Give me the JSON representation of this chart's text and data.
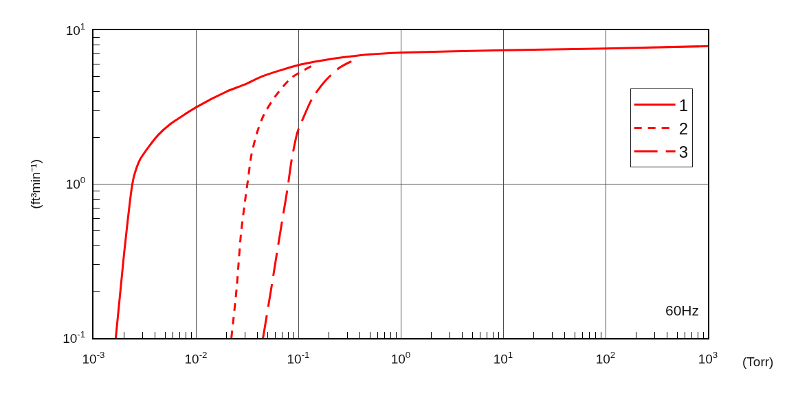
{
  "chart_data": {
    "type": "line",
    "xlabel": "(Torr)",
    "ylabel": "(ft³min⁻¹)",
    "log": "xy",
    "xlim": [
      0.001,
      1000
    ],
    "ylim": [
      0.1,
      10
    ],
    "xticks": [
      {
        "value": 0.001,
        "label": "10$^{-3}$"
      },
      {
        "value": 0.002,
        "label": null
      },
      {
        "value": 0.003,
        "label": null
      },
      {
        "value": 0.004,
        "label": null
      },
      {
        "value": 0.005,
        "label": null
      },
      {
        "value": 0.006,
        "label": null
      },
      {
        "value": 0.007,
        "label": null
      },
      {
        "value": 0.008,
        "label": null
      },
      {
        "value": 0.009,
        "label": null
      },
      {
        "value": 0.01,
        "label": "10$^{-2}$"
      },
      {
        "value": 0.02,
        "label": null
      },
      {
        "value": 0.03,
        "label": null
      },
      {
        "value": 0.04,
        "label": null
      },
      {
        "value": 0.05,
        "label": null
      },
      {
        "value": 0.06,
        "label": null
      },
      {
        "value": 0.07,
        "label": null
      },
      {
        "value": 0.08,
        "label": null
      },
      {
        "value": 0.09,
        "label": null
      },
      {
        "value": 0.1,
        "label": "10$^{-1}$"
      },
      {
        "value": 0.2,
        "label": null
      },
      {
        "value": 0.3,
        "label": null
      },
      {
        "value": 0.4,
        "label": null
      },
      {
        "value": 0.5,
        "label": null
      },
      {
        "value": 0.6,
        "label": null
      },
      {
        "value": 0.7,
        "label": null
      },
      {
        "value": 0.8,
        "label": null
      },
      {
        "value": 0.9,
        "label": null
      },
      {
        "value": 1,
        "label": "10$^{0}$"
      },
      {
        "value": 2,
        "label": null
      },
      {
        "value": 3,
        "label": null
      },
      {
        "value": 4,
        "label": null
      },
      {
        "value": 5,
        "label": null
      },
      {
        "value": 6,
        "label": null
      },
      {
        "value": 7,
        "label": null
      },
      {
        "value": 8,
        "label": null
      },
      {
        "value": 9,
        "label": null
      },
      {
        "value": 10,
        "label": "10$^{1}$"
      },
      {
        "value": 20,
        "label": null
      },
      {
        "value": 30,
        "label": null
      },
      {
        "value": 40,
        "label": null
      },
      {
        "value": 50,
        "label": null
      },
      {
        "value": 60,
        "label": null
      },
      {
        "value": 70,
        "label": null
      },
      {
        "value": 80,
        "label": null
      },
      {
        "value": 90,
        "label": null
      },
      {
        "value": 100,
        "label": "10$^{2}$"
      },
      {
        "value": 200,
        "label": null
      },
      {
        "value": 300,
        "label": null
      },
      {
        "value": 400,
        "label": null
      },
      {
        "value": 500,
        "label": null
      },
      {
        "value": 600,
        "label": null
      },
      {
        "value": 700,
        "label": null
      },
      {
        "value": 800,
        "label": null
      },
      {
        "value": 900,
        "label": null
      },
      {
        "value": 1000,
        "label": "10$^{3}$"
      }
    ],
    "yticks": [
      {
        "value": 0.1,
        "label": "10$^{-1}$"
      },
      {
        "value": 0.2,
        "label": null
      },
      {
        "value": 0.3,
        "label": null
      },
      {
        "value": 0.4,
        "label": null
      },
      {
        "value": 0.5,
        "label": null
      },
      {
        "value": 0.6,
        "label": null
      },
      {
        "value": 0.7,
        "label": null
      },
      {
        "value": 0.8,
        "label": null
      },
      {
        "value": 0.9,
        "label": null
      },
      {
        "value": 1,
        "label": "10$^{0}$"
      },
      {
        "value": 2,
        "label": null
      },
      {
        "value": 3,
        "label": null
      },
      {
        "value": 4,
        "label": null
      },
      {
        "value": 5,
        "label": null
      },
      {
        "value": 6,
        "label": null
      },
      {
        "value": 7,
        "label": null
      },
      {
        "value": 8,
        "label": null
      },
      {
        "value": 9,
        "label": null
      },
      {
        "value": 10,
        "label": "10$^{1}$"
      }
    ],
    "grid": true,
    "legend": "top right",
    "annotations": [
      "60Hz"
    ],
    "series": [
      {
        "name": "1",
        "color": "#ff0000",
        "line_style": "solid",
        "x": [
          0.00165,
          0.00198,
          0.00237,
          0.00249,
          0.00284,
          0.00349,
          0.0043,
          0.00556,
          0.01,
          0.0202,
          0.03,
          0.044,
          0.1,
          0.2,
          0.313,
          0.5,
          1,
          10,
          100,
          1000
        ],
        "values": [
          0.1,
          0.342,
          0.954,
          1.13,
          1.44,
          1.76,
          2.09,
          2.44,
          3.15,
          4.01,
          4.44,
          5.0,
          5.93,
          6.46,
          6.73,
          6.96,
          7.15,
          7.41,
          7.6,
          7.87
        ]
      },
      {
        "name": "2",
        "color": "#ff0000",
        "line_style": "dashed",
        "x": [
          0.0222,
          0.0249,
          0.0276,
          0.0306,
          0.0322,
          0.0348,
          0.0396,
          0.0463,
          0.06,
          0.0861,
          0.134
        ],
        "values": [
          0.1,
          0.205,
          0.482,
          0.831,
          1.06,
          1.54,
          2.17,
          2.84,
          3.74,
          4.92,
          5.83
        ]
      },
      {
        "name": "3",
        "color": "#ff0000",
        "line_style": "longdash",
        "x": [
          0.0452,
          0.0541,
          0.0665,
          0.0756,
          0.0796,
          0.0861,
          0.098,
          0.111,
          0.137,
          0.187,
          0.255,
          0.33
        ],
        "values": [
          0.1,
          0.205,
          0.482,
          0.804,
          1.0,
          1.44,
          2.17,
          2.66,
          3.61,
          4.75,
          5.73,
          6.28
        ]
      }
    ]
  }
}
